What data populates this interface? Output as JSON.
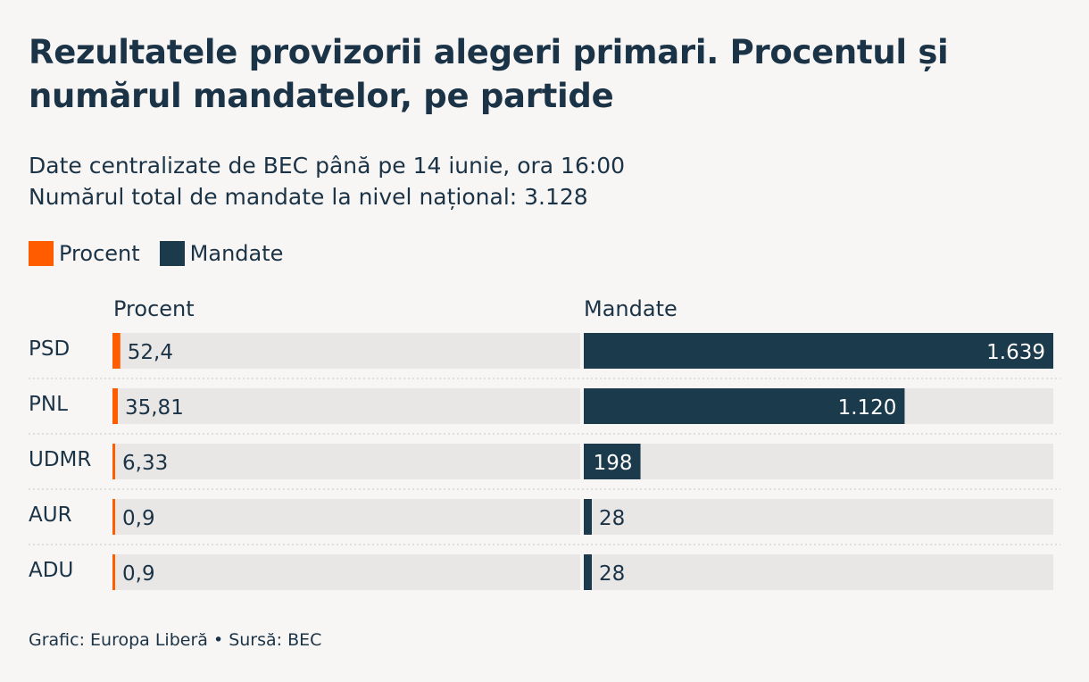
{
  "title": "Rezultatele provizorii alegeri primari. Procentul și numărul mandatelor, pe partide",
  "subtitle_lines": [
    "Date centralizate de BEC până pe 14 iunie, ora 16:00",
    "Numărul total de mandate la nivel național: 3.128"
  ],
  "legend": [
    {
      "label": "Procent",
      "color": "#ff5c00"
    },
    {
      "label": "Mandate",
      "color": "#1b3a4b"
    }
  ],
  "footer": "Grafic: Europa Liberă • Sursă: BEC",
  "chart_data": {
    "type": "bar",
    "categories": [
      "PSD",
      "PNL",
      "UDMR",
      "AUR",
      "ADU"
    ],
    "column_headers": [
      "Procent",
      "Mandate"
    ],
    "series": [
      {
        "name": "Procent",
        "values": [
          52.4,
          35.81,
          6.33,
          0.9,
          0.9
        ],
        "labels": [
          "52,4",
          "35,81",
          "6,33",
          "0,9",
          "0,9"
        ],
        "color": "#ff5c00",
        "xlim": [
          0,
          3128
        ]
      },
      {
        "name": "Mandate",
        "values": [
          1639,
          1120,
          198,
          28,
          28
        ],
        "labels": [
          "1.639",
          "1.120",
          "198",
          "28",
          "28"
        ],
        "color": "#1b3a4b",
        "xlim": [
          0,
          1639
        ]
      }
    ],
    "legend_position": "top-left",
    "grid": false
  }
}
